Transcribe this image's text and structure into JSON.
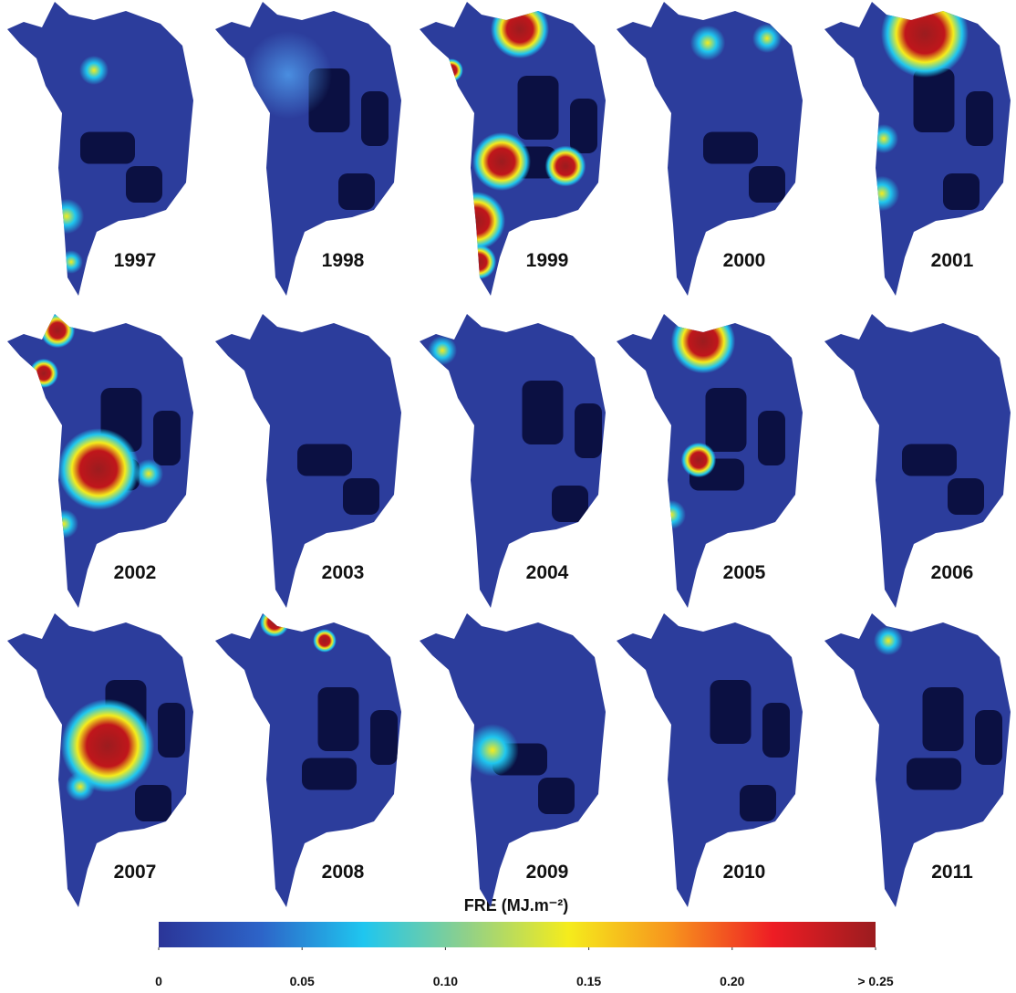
{
  "panels": [
    {
      "year": "1997"
    },
    {
      "year": "1998"
    },
    {
      "year": "1999"
    },
    {
      "year": "2000"
    },
    {
      "year": "2001"
    },
    {
      "year": "2002"
    },
    {
      "year": "2003"
    },
    {
      "year": "2004"
    },
    {
      "year": "2005"
    },
    {
      "year": "2006"
    },
    {
      "year": "2007"
    },
    {
      "year": "2008"
    },
    {
      "year": "2009"
    },
    {
      "year": "2010"
    },
    {
      "year": "2011"
    }
  ],
  "colorbar": {
    "title": "FRE (MJ.m⁻²)",
    "lim": [
      0,
      0.25
    ],
    "ticks": [
      0,
      0.05,
      {
        "value": 0.1,
        "label": "0.10"
      },
      0.15,
      {
        "value": 0.2,
        "label": "0.20"
      },
      {
        "value": 0.25,
        "label": "> 0.25"
      }
    ],
    "colors": [
      "#2b3598",
      "#2d64c8",
      "#1fc6ef",
      "#8fd08a",
      "#f5ec1c",
      "#f7941d",
      "#ee1c24",
      "#9b1c1f"
    ]
  }
}
